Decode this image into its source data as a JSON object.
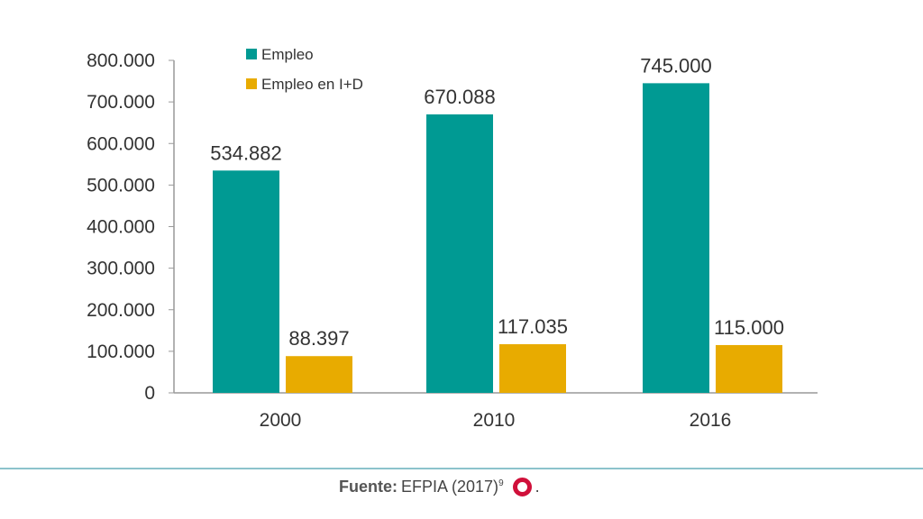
{
  "chart_data": {
    "type": "bar",
    "categories": [
      "2000",
      "2010",
      "2016"
    ],
    "series": [
      {
        "name": "Empleo",
        "values": [
          534882,
          670088,
          745000
        ],
        "labels": [
          "534.882",
          "670.088",
          "745.000"
        ],
        "color": "#009a93"
      },
      {
        "name": "Empleo en I+D",
        "values": [
          88397,
          117035,
          115000
        ],
        "labels": [
          "88.397",
          "117.035",
          "115.000"
        ],
        "color": "#e8ab00"
      }
    ],
    "ylim": [
      0,
      800000
    ],
    "yticks": [
      "0",
      "100.000",
      "200.000",
      "300.000",
      "400.000",
      "500.000",
      "600.000",
      "700.000",
      "800.000"
    ],
    "legend": "top-left",
    "grid": false
  },
  "footer": {
    "source_label": "Fuente:",
    "source_text": "EFPIA (2017)",
    "footnote": "9",
    "icon": "red-ring-icon",
    "trail": "."
  }
}
